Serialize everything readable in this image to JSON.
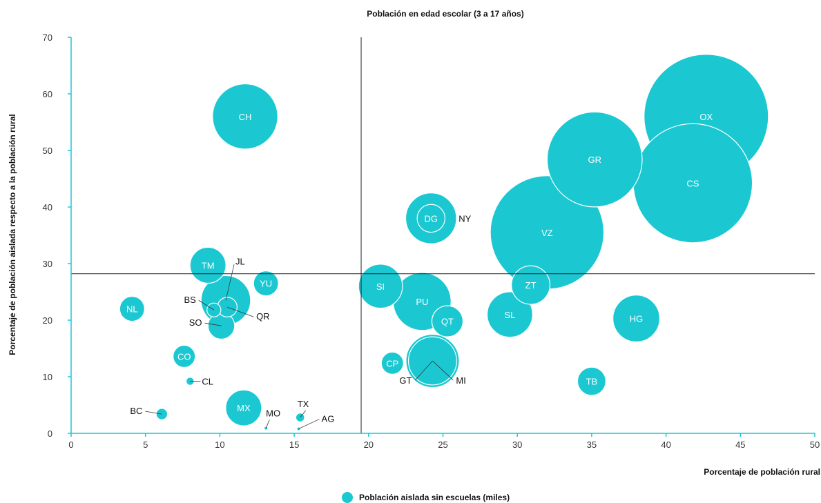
{
  "chart_data": {
    "type": "bubble",
    "title": "Población en edad escolar (3 a 17 años)",
    "xlabel": "Porcentaje de población rural",
    "ylabel": "Porcentaje de población aislada respecto a la población rural",
    "xlim": [
      0,
      50
    ],
    "ylim": [
      0,
      70
    ],
    "xticks": [
      0,
      5,
      10,
      15,
      20,
      25,
      30,
      35,
      40,
      45,
      50
    ],
    "yticks": [
      0,
      10,
      20,
      30,
      40,
      50,
      60,
      70
    ],
    "reference_lines": {
      "x": 19.5,
      "y": 28.2
    },
    "legend": {
      "label": "Población aislada sin escuelas (miles)",
      "position": "bottom-center"
    },
    "color": "#1bc8d2",
    "size_unit": "bubble area proportional to population (miles)",
    "points": [
      {
        "label": "OX",
        "x": 42.7,
        "y": 56.0,
        "size": 1200
      },
      {
        "label": "CS",
        "x": 41.8,
        "y": 44.2,
        "size": 1100
      },
      {
        "label": "VZ",
        "x": 32.0,
        "y": 35.5,
        "size": 1000
      },
      {
        "label": "GR",
        "x": 35.2,
        "y": 48.4,
        "size": 700
      },
      {
        "label": "CH",
        "x": 11.7,
        "y": 56.0,
        "size": 330
      },
      {
        "label": "HG",
        "x": 38.0,
        "y": 20.3,
        "size": 170
      },
      {
        "label": "DG",
        "x": 24.2,
        "y": 38.0,
        "size": 200
      },
      {
        "label": "NY",
        "x": 24.2,
        "y": 38.0,
        "size": 60
      },
      {
        "label": "PU",
        "x": 23.6,
        "y": 23.3,
        "size": 260
      },
      {
        "label": "MI",
        "x": 24.3,
        "y": 12.8,
        "size": 220
      },
      {
        "label": "GT",
        "x": 24.3,
        "y": 12.8,
        "size": 180
      },
      {
        "label": "SL",
        "x": 29.5,
        "y": 21.0,
        "size": 160
      },
      {
        "label": "SI",
        "x": 20.8,
        "y": 26.0,
        "size": 150
      },
      {
        "label": "ZT",
        "x": 30.9,
        "y": 26.2,
        "size": 115
      },
      {
        "label": "QT",
        "x": 25.3,
        "y": 19.8,
        "size": 75
      },
      {
        "label": "TB",
        "x": 35.0,
        "y": 9.2,
        "size": 62
      },
      {
        "label": "CP",
        "x": 21.6,
        "y": 12.4,
        "size": 38
      },
      {
        "label": "JL",
        "x": 10.4,
        "y": 23.5,
        "size": 190
      },
      {
        "label": "TM",
        "x": 9.2,
        "y": 29.7,
        "size": 100
      },
      {
        "label": "YU",
        "x": 13.1,
        "y": 26.5,
        "size": 48
      },
      {
        "label": "NL",
        "x": 4.1,
        "y": 22.0,
        "size": 48
      },
      {
        "label": "QR",
        "x": 10.5,
        "y": 22.3,
        "size": 30
      },
      {
        "label": "SO",
        "x": 10.1,
        "y": 19.0,
        "size": 55
      },
      {
        "label": "BS",
        "x": 9.6,
        "y": 21.8,
        "size": 15
      },
      {
        "label": "CO",
        "x": 7.6,
        "y": 13.6,
        "size": 38
      },
      {
        "label": "CL",
        "x": 8.0,
        "y": 9.2,
        "size": 5
      },
      {
        "label": "MX",
        "x": 11.6,
        "y": 4.5,
        "size": 100
      },
      {
        "label": "BC",
        "x": 6.1,
        "y": 3.4,
        "size": 10
      },
      {
        "label": "MO",
        "x": 13.1,
        "y": 0.9,
        "size": 1
      },
      {
        "label": "TX",
        "x": 15.4,
        "y": 2.8,
        "size": 6
      },
      {
        "label": "AG",
        "x": 15.3,
        "y": 0.8,
        "size": 1
      }
    ]
  }
}
